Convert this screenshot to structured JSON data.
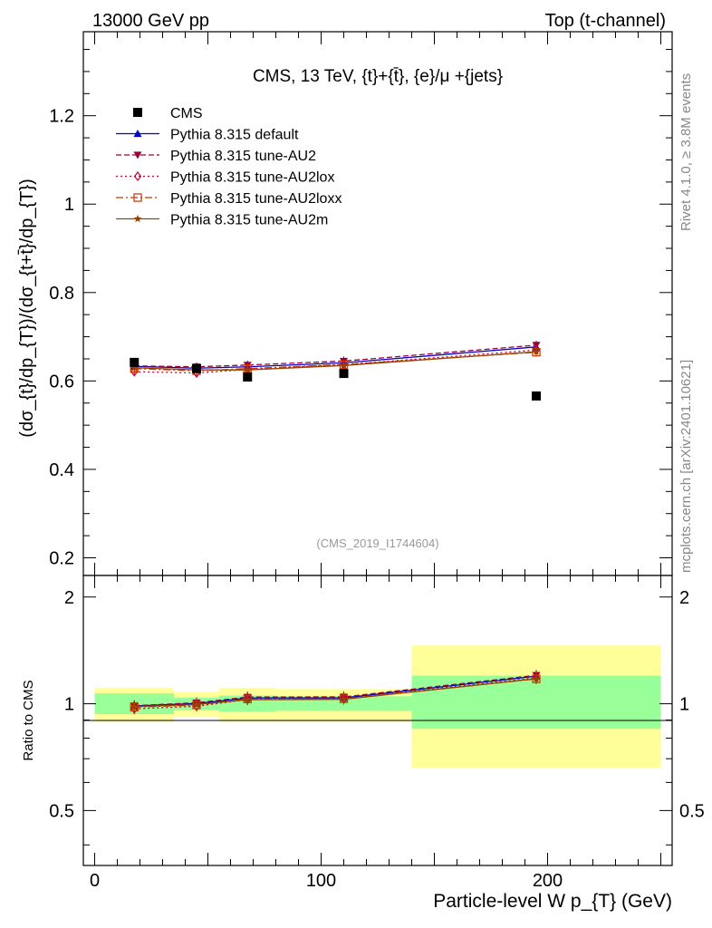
{
  "header": {
    "left": "13000 GeV pp",
    "right": "Top (t-channel)"
  },
  "side_labels": {
    "rivet": "Rivet 4.1.0, ≥ 3.8M events",
    "mcplots": "mcplots.cern.ch [arXiv:2401.10621]"
  },
  "chart_data": {
    "type": "scatter",
    "title": "CMS, 13 TeV, {t}+{t̄}, {e}/μ +{jets}",
    "watermark": "(CMS_2019_I1744604)",
    "xlabel": "Particle-level W p_{T} (GeV)",
    "ylabel": "(dσ_{t}/dp_{T})/(dσ_{t+t̄}/dp_{T})",
    "ratio_ylabel": "Ratio to CMS",
    "xlim": [
      -5,
      255
    ],
    "ylim": [
      0.16,
      1.39
    ],
    "ratio_ylim": [
      0.35,
      2.3
    ],
    "x_ticks": [
      0,
      100,
      200
    ],
    "y_ticks": [
      0.2,
      0.4,
      0.6,
      0.8,
      1,
      1.2
    ],
    "ratio_ticks": [
      0.5,
      1,
      2
    ],
    "bins": [
      [
        0,
        35
      ],
      [
        35,
        55
      ],
      [
        55,
        80
      ],
      [
        80,
        140
      ],
      [
        140,
        250
      ]
    ],
    "x": [
      17.5,
      45,
      67.5,
      110,
      195
    ],
    "data": {
      "name": "CMS",
      "color": "#000000",
      "values": [
        0.642,
        0.628,
        0.609,
        0.617,
        0.566
      ]
    },
    "ratio_band_inner": [
      [
        0.935,
        1.07
      ],
      [
        0.96,
        1.04
      ],
      [
        0.95,
        1.055
      ],
      [
        0.955,
        1.05
      ],
      [
        0.85,
        1.2
      ]
    ],
    "ratio_band_outer": [
      [
        0.89,
        1.11
      ],
      [
        0.92,
        1.08
      ],
      [
        0.89,
        1.11
      ],
      [
        0.89,
        1.1
      ],
      [
        0.66,
        1.46
      ]
    ],
    "colors": {
      "band_inner": "#99ff99",
      "band_outer": "#ffff99"
    },
    "series": [
      {
        "name": "Pythia 8.315 default",
        "color": "#0000cc",
        "marker": "triangle-up",
        "dash": "",
        "values": [
          0.633,
          0.629,
          0.632,
          0.641,
          0.677
        ]
      },
      {
        "name": "Pythia 8.315 tune-AU2",
        "color": "#990033",
        "marker": "triangle-down",
        "dash": "6,3",
        "values": [
          0.634,
          0.632,
          0.636,
          0.645,
          0.681
        ]
      },
      {
        "name": "Pythia 8.315 tune-AU2lox",
        "color": "#cc0033",
        "marker": "diamond",
        "dash": "2,3",
        "values": [
          0.621,
          0.618,
          0.626,
          0.637,
          0.67
        ]
      },
      {
        "name": "Pythia 8.315 tune-AU2loxx",
        "color": "#cc3300",
        "marker": "square-open",
        "dash": "8,3,2,3",
        "values": [
          0.628,
          0.623,
          0.628,
          0.637,
          0.665
        ]
      },
      {
        "name": "Pythia 8.315 tune-AU2m",
        "color": "#994400",
        "marker": "star",
        "dash": "",
        "values": [
          0.63,
          0.625,
          0.625,
          0.635,
          0.666
        ]
      }
    ]
  }
}
